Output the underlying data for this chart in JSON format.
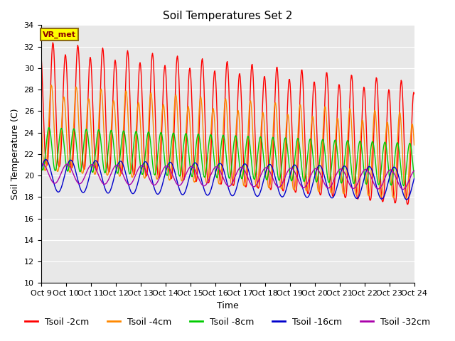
{
  "title": "Soil Temperatures Set 2",
  "xlabel": "Time",
  "ylabel": "Soil Temperature (C)",
  "ylim": [
    10,
    34
  ],
  "yticks": [
    10,
    12,
    14,
    16,
    18,
    20,
    22,
    24,
    26,
    28,
    30,
    32,
    34
  ],
  "n_days": 15,
  "n_per_day": 48,
  "x_tick_labels": [
    "Oct 9",
    "Oct 10",
    "Oct 11",
    "Oct 12",
    "Oct 13",
    "Oct 14",
    "Oct 15",
    "Oct 16",
    "Oct 17",
    "Oct 18",
    "Oct 19",
    "Oct 20",
    "Oct 21",
    "Oct 22",
    "Oct 23",
    "Oct 24"
  ],
  "line_colors": [
    "#ff0000",
    "#ff8800",
    "#00cc00",
    "#0000cc",
    "#aa00aa"
  ],
  "line_labels": [
    "Tsoil -2cm",
    "Tsoil -4cm",
    "Tsoil -8cm",
    "Tsoil -16cm",
    "Tsoil -32cm"
  ],
  "fig_bg_color": "#ffffff",
  "plot_bg_color": "#e8e8e8",
  "annotation_text": "VR_met",
  "annotation_bg": "#ffff00",
  "annotation_border": "#8b6914",
  "title_fontsize": 11,
  "axis_label_fontsize": 9,
  "tick_fontsize": 8,
  "legend_fontsize": 9
}
